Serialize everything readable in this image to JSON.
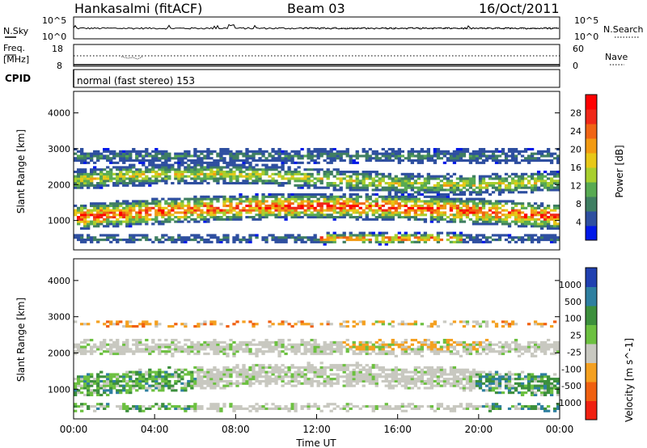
{
  "header": {
    "station": "Hankasalmi (fitACF)",
    "beam": "Beam 03",
    "date": "16/Oct/2011"
  },
  "top_panel": {
    "left_label": "N.Sky",
    "left_ticks": [
      "10^5",
      "10^0"
    ],
    "right_ticks": [
      "10^5",
      "10^0"
    ],
    "right_label": "N.Search"
  },
  "freq_panel": {
    "left_label_1": "Freq.",
    "left_label_2": "[MHz]",
    "left_ticks": [
      "18",
      "8"
    ],
    "right_ticks": [
      "60",
      "0"
    ],
    "right_label": "Nave",
    "cpid_label": "CPID"
  },
  "mode_text": "normal (fast stereo) 153",
  "chart_data": [
    {
      "type": "heatmap",
      "title": "",
      "ylabel": "Slant Range [km]",
      "xlabel": "",
      "ylim": [
        180,
        4600
      ],
      "yticks": [
        "1000",
        "2000",
        "3000",
        "4000"
      ],
      "colorbar": {
        "label": "Power [dB]",
        "ticks": [
          "4",
          "8",
          "12",
          "16",
          "20",
          "24",
          "28"
        ],
        "range": [
          0,
          32
        ],
        "colors": [
          "#0018e8",
          "#2e4fa0",
          "#3f7e62",
          "#58aa52",
          "#a8cf2e",
          "#e8c818",
          "#f29a12",
          "#f06414",
          "#f02818",
          "#ff0000"
        ]
      }
    },
    {
      "type": "heatmap",
      "title": "",
      "ylabel": "Slant Range [km]",
      "xlabel": "Time UT",
      "ylim": [
        180,
        4600
      ],
      "yticks": [
        "1000",
        "2000",
        "3000",
        "4000"
      ],
      "xticks": [
        "00:00",
        "04:00",
        "08:00",
        "12:00",
        "16:00",
        "20:00",
        "00:00"
      ],
      "colorbar": {
        "label": "Velocity [m s^-1]",
        "ticks": [
          "1000",
          "500",
          "100",
          "25",
          "-25",
          "-100",
          "-500",
          "-1000"
        ],
        "colors": [
          "#2040b0",
          "#2e7fa0",
          "#3c8f3c",
          "#6cc040",
          "#c8c8c0",
          "#f4a020",
          "#f06010",
          "#f02010"
        ]
      }
    }
  ]
}
